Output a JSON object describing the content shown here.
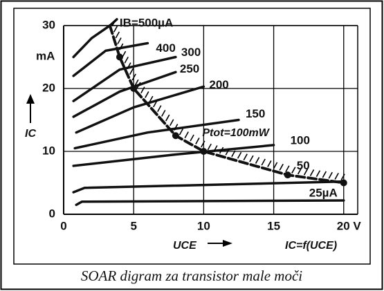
{
  "chart_data": {
    "type": "line",
    "caption": "SOAR digram  za transistor male moči",
    "y_unit": "mA",
    "y_label": "IC",
    "x_label": "UCE",
    "annotation": "IC=f(UCE)",
    "xlim": [
      0,
      21
    ],
    "ylim": [
      0,
      30
    ],
    "xticks": [
      0,
      5,
      10,
      15,
      {
        "value": 20,
        "label": "20 V"
      }
    ],
    "yticks": [
      0,
      10,
      20,
      30
    ],
    "grid": true,
    "color": "#111111",
    "series": [
      {
        "name": "IB=500µA",
        "x": [
          0.7,
          2,
          3.3,
          3.8
        ],
        "values": [
          25,
          28,
          30,
          31
        ]
      },
      {
        "name": "400",
        "x": [
          0.7,
          3,
          6
        ],
        "values": [
          22,
          26,
          27.2
        ]
      },
      {
        "name": "300",
        "x": [
          0.7,
          4,
          8
        ],
        "values": [
          18,
          23,
          25
        ]
      },
      {
        "name": "250",
        "x": [
          0.7,
          4,
          8
        ],
        "values": [
          15.5,
          19.5,
          22.6
        ]
      },
      {
        "name": "200",
        "x": [
          0.9,
          5,
          10
        ],
        "values": [
          13,
          17,
          20.3
        ]
      },
      {
        "name": "150",
        "x": [
          0.8,
          6,
          12.5
        ],
        "values": [
          10.5,
          13,
          15
        ]
      },
      {
        "name": "100",
        "x": [
          0.7,
          8,
          15
        ],
        "values": [
          7.7,
          9.5,
          11
        ]
      },
      {
        "name": "50",
        "x": [
          0.7,
          1.5,
          20
        ],
        "values": [
          3.5,
          4.2,
          5.2
        ]
      },
      {
        "name": "25µA",
        "x": [
          0.9,
          1.3,
          20
        ],
        "values": [
          1.5,
          2,
          2.2
        ]
      },
      {
        "name": "Ptot=100mW",
        "dashed": true,
        "markers": true,
        "x": [
          3.3,
          4,
          5,
          8,
          10,
          16,
          20
        ],
        "values": [
          30,
          25,
          20,
          12.5,
          10,
          6.25,
          5
        ]
      }
    ]
  }
}
